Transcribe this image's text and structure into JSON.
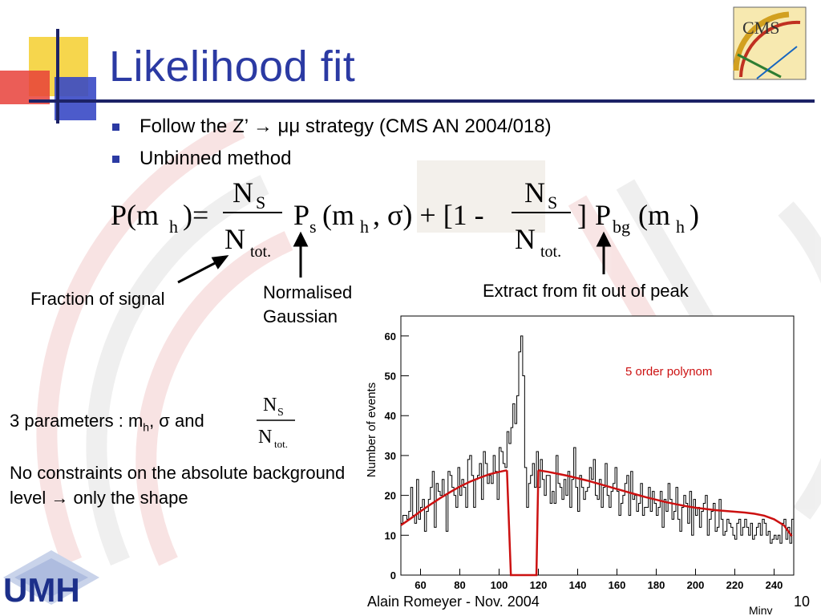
{
  "slide": {
    "title": "Likelihood fit",
    "bullets": [
      {
        "text": "Follow the Z’ → μμ strategy (CMS AN 2004/018)"
      },
      {
        "text": "Unbinned method"
      }
    ],
    "formula": {
      "p_open": "P(m",
      "sub_h": "h",
      "close_eq": ")=",
      "N": "N",
      "sub_S": "S",
      "sub_tot": "tot.",
      "Ps": "P",
      "sub_s": "s",
      "gauss_args_a": "(m",
      "gauss_args_b": ", σ) + [1 -",
      "bracket_close": "]",
      "Pbg": "P",
      "sub_bg": "bg",
      "bg_args_a": "(m",
      "bg_args_b": ")"
    },
    "annotations": {
      "fraction": "Fraction of signal",
      "gauss_line1": "Normalised",
      "gauss_line2": "Gaussian",
      "fit": "Extract from fit out of peak"
    },
    "params": {
      "prefix": "3 parameters : m",
      "sub_h": "h",
      "middle": ", σ and",
      "N": "N",
      "sub_S": "S",
      "sub_tot": "tot."
    },
    "constraints": "No constraints on the absolute background level → only the shape",
    "footer": {
      "author": "Alain Romeyer - Nov. 2004",
      "page": "10"
    },
    "logos": {
      "cms_text": "CMS",
      "umh_text": "UMH"
    },
    "colors": {
      "title": "#2b3aa3",
      "fit_curve": "#cc1111",
      "histogram": "#000000"
    }
  },
  "chart_data": {
    "type": "line",
    "ylabel": "Number of events",
    "xlabel": "Minv",
    "annotation": "5 order polynom",
    "xlim": [
      50,
      250
    ],
    "ylim": [
      0,
      65
    ],
    "x_ticks": [
      60,
      80,
      100,
      120,
      140,
      160,
      180,
      200,
      220,
      240
    ],
    "y_ticks": [
      0,
      10,
      20,
      30,
      40,
      50,
      60
    ],
    "histogram": {
      "bin_start": 50,
      "bin_width": 1,
      "values": [
        13,
        15,
        15,
        14,
        16,
        22,
        15,
        13,
        24,
        14,
        17,
        19,
        11,
        16,
        19,
        22,
        26,
        12,
        23,
        21,
        20,
        24,
        20,
        11,
        26,
        25,
        22,
        20,
        17,
        27,
        20,
        24,
        22,
        17,
        29,
        30,
        25,
        17,
        24,
        25,
        28,
        19,
        31,
        28,
        23,
        25,
        23,
        30,
        26,
        19,
        32,
        31,
        28,
        27,
        36,
        33,
        37,
        43,
        38,
        45,
        56,
        60,
        50,
        27,
        17,
        23,
        25,
        28,
        22,
        31,
        22,
        29,
        24,
        20,
        25,
        25,
        18,
        21,
        18,
        30,
        23,
        22,
        19,
        24,
        20,
        26,
        17,
        24,
        32,
        22,
        16,
        25,
        22,
        19,
        21,
        22,
        27,
        24,
        29,
        20,
        19,
        24,
        17,
        22,
        28,
        20,
        17,
        21,
        23,
        27,
        21,
        15,
        18,
        20,
        23,
        25,
        15,
        26,
        19,
        20,
        16,
        18,
        23,
        15,
        17,
        17,
        22,
        16,
        21,
        18,
        15,
        17,
        21,
        12,
        19,
        16,
        23,
        19,
        14,
        16,
        22,
        14,
        11,
        17,
        20,
        18,
        13,
        21,
        10,
        19,
        15,
        17,
        12,
        16,
        18,
        20,
        10,
        14,
        16,
        18,
        11,
        12,
        19,
        14,
        10,
        11,
        14,
        13,
        12,
        10,
        9,
        13,
        14,
        10,
        12,
        14,
        12,
        10,
        13,
        9,
        10,
        12,
        13,
        10,
        14,
        13,
        10,
        11,
        8,
        9,
        10,
        9,
        10,
        8,
        13,
        14,
        9,
        12,
        8,
        14
      ]
    },
    "fit_series": {
      "name": "5 order polynom",
      "x": [
        50,
        55,
        60,
        65,
        70,
        75,
        80,
        85,
        90,
        95,
        100,
        104
      ],
      "y": [
        12.5,
        14.2,
        16.0,
        17.7,
        19.3,
        20.8,
        22.2,
        23.4,
        24.4,
        25.3,
        25.9,
        26.3
      ],
      "x2": [
        120,
        125,
        130,
        135,
        140,
        145,
        150,
        155,
        160,
        165,
        170,
        175,
        180,
        185,
        190,
        195,
        200,
        205,
        210,
        215,
        220,
        225,
        230,
        235,
        240,
        245,
        249
      ],
      "y2": [
        26.3,
        25.9,
        25.4,
        24.9,
        24.3,
        23.7,
        23.0,
        22.3,
        21.6,
        20.9,
        20.2,
        19.5,
        18.9,
        18.3,
        17.8,
        17.3,
        16.9,
        16.6,
        16.3,
        16.1,
        15.9,
        15.7,
        15.4,
        14.9,
        14.0,
        12.5,
        9.8
      ],
      "excluded_range": [
        106,
        119
      ]
    }
  }
}
